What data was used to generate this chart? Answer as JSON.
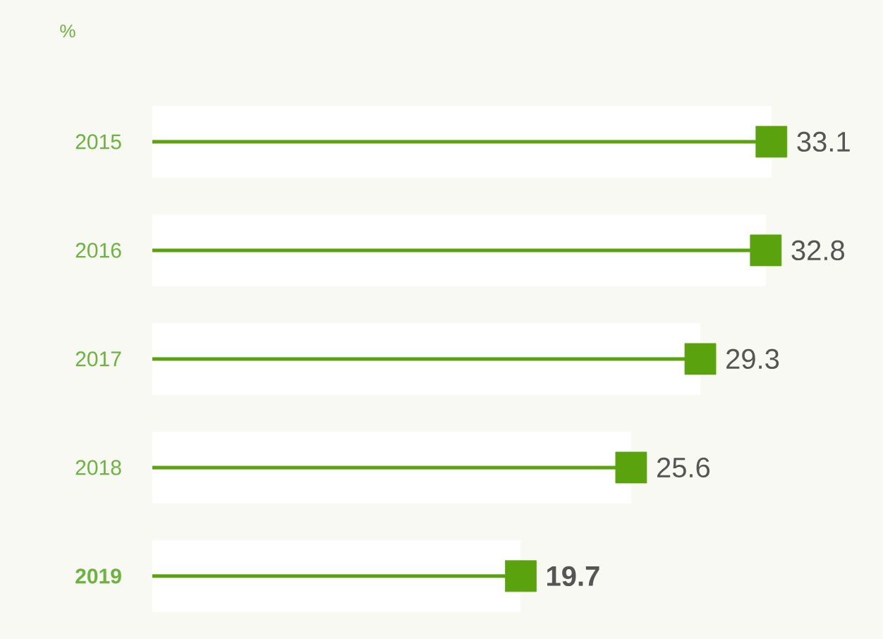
{
  "chart_data": {
    "type": "lollipop",
    "orientation": "horizontal",
    "annotations": [
      "%"
    ],
    "categories": [
      "2015",
      "2016",
      "2017",
      "2018",
      "**2019**"
    ],
    "series": [
      {
        "type": "bar",
        "color": "#ffffff",
        "values": [
          33.1,
          32.8,
          29.3,
          25.6,
          19.7
        ]
      },
      {
        "color": "#5ba30e",
        "values": [
          33.1,
          32.8,
          29.3,
          25.6,
          19.7
        ],
        "value_labels": [
          "33.1",
          "32.8",
          "29.3",
          "25.6",
          "**19.7**"
        ]
      }
    ],
    "marker": "square",
    "tick_labels": "y"
  }
}
